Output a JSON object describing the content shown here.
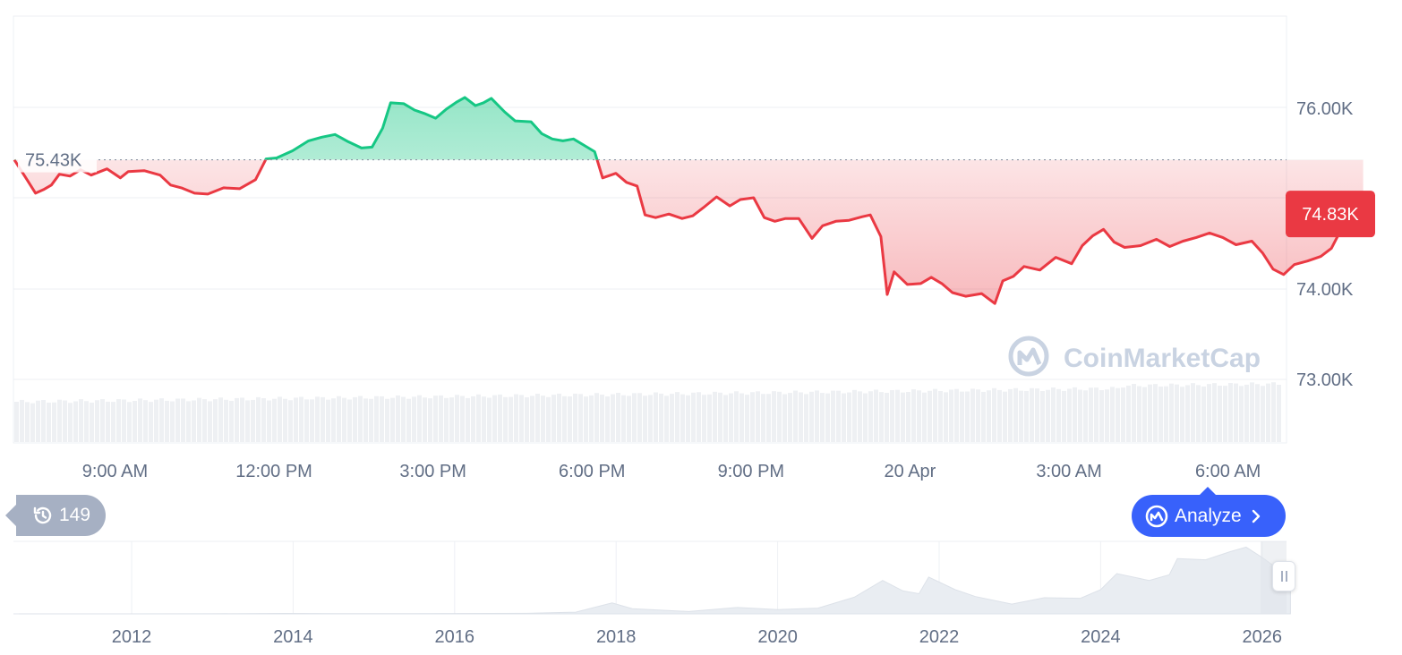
{
  "chart_data": {
    "type": "line",
    "baseline": 75430,
    "baseline_label": "75.43K",
    "current_value": 74830,
    "current_label": "74.83K",
    "y_ticks": [
      {
        "value": 76000,
        "label": "76.00K"
      },
      {
        "value": 74000,
        "label": "74.00K"
      },
      {
        "value": 73000,
        "label": "73.00K"
      }
    ],
    "ylim": [
      72650,
      77000
    ],
    "x_ticks": [
      {
        "hours": 9,
        "label": "9:00 AM"
      },
      {
        "hours": 12,
        "label": "12:00 PM"
      },
      {
        "hours": 15,
        "label": "3:00 PM"
      },
      {
        "hours": 18,
        "label": "6:00 PM"
      },
      {
        "hours": 21,
        "label": "9:00 PM"
      },
      {
        "hours": 24,
        "label": "20 Apr"
      },
      {
        "hours": 27,
        "label": "3:00 AM"
      },
      {
        "hours": 30,
        "label": "6:00 AM"
      }
    ],
    "xlim_hours": [
      7.05,
      31.05
    ],
    "x_note_unit": "hours from Apr 19 00:00",
    "series": [
      {
        "up_color": "#16c784",
        "down_color": "#ea3943",
        "points": [
          [
            7.05,
            75430
          ],
          [
            7.3,
            75200
          ],
          [
            7.45,
            75060
          ],
          [
            7.6,
            75100
          ],
          [
            7.75,
            75150
          ],
          [
            7.9,
            75270
          ],
          [
            8.1,
            75250
          ],
          [
            8.3,
            75320
          ],
          [
            8.5,
            75260
          ],
          [
            8.8,
            75330
          ],
          [
            9.05,
            75230
          ],
          [
            9.2,
            75300
          ],
          [
            9.5,
            75310
          ],
          [
            9.8,
            75260
          ],
          [
            10.0,
            75150
          ],
          [
            10.2,
            75120
          ],
          [
            10.45,
            75060
          ],
          [
            10.7,
            75050
          ],
          [
            11.0,
            75120
          ],
          [
            11.3,
            75110
          ],
          [
            11.6,
            75210
          ],
          [
            11.8,
            75440
          ],
          [
            12.0,
            75450
          ],
          [
            12.3,
            75530
          ],
          [
            12.6,
            75640
          ],
          [
            12.85,
            75680
          ],
          [
            13.1,
            75710
          ],
          [
            13.35,
            75630
          ],
          [
            13.6,
            75560
          ],
          [
            13.8,
            75570
          ],
          [
            14.0,
            75780
          ],
          [
            14.15,
            76060
          ],
          [
            14.4,
            76050
          ],
          [
            14.6,
            75980
          ],
          [
            14.8,
            75940
          ],
          [
            15.0,
            75890
          ],
          [
            15.2,
            75990
          ],
          [
            15.4,
            76070
          ],
          [
            15.55,
            76120
          ],
          [
            15.75,
            76030
          ],
          [
            15.9,
            76060
          ],
          [
            16.05,
            76110
          ],
          [
            16.3,
            75960
          ],
          [
            16.5,
            75860
          ],
          [
            16.8,
            75850
          ],
          [
            17.0,
            75720
          ],
          [
            17.2,
            75660
          ],
          [
            17.4,
            75640
          ],
          [
            17.6,
            75660
          ],
          [
            17.8,
            75590
          ],
          [
            18.0,
            75520
          ],
          [
            18.15,
            75230
          ],
          [
            18.4,
            75280
          ],
          [
            18.6,
            75180
          ],
          [
            18.8,
            75140
          ],
          [
            18.95,
            74820
          ],
          [
            19.15,
            74790
          ],
          [
            19.4,
            74830
          ],
          [
            19.65,
            74780
          ],
          [
            19.85,
            74810
          ],
          [
            20.05,
            74900
          ],
          [
            20.3,
            75020
          ],
          [
            20.55,
            74920
          ],
          [
            20.75,
            74990
          ],
          [
            21.0,
            75010
          ],
          [
            21.2,
            74790
          ],
          [
            21.4,
            74750
          ],
          [
            21.6,
            74780
          ],
          [
            21.85,
            74780
          ],
          [
            22.1,
            74560
          ],
          [
            22.3,
            74700
          ],
          [
            22.55,
            74750
          ],
          [
            22.8,
            74760
          ],
          [
            23.05,
            74800
          ],
          [
            23.2,
            74820
          ],
          [
            23.4,
            74580
          ],
          [
            23.52,
            73940
          ],
          [
            23.65,
            74190
          ],
          [
            23.9,
            74050
          ],
          [
            24.15,
            74060
          ],
          [
            24.35,
            74130
          ],
          [
            24.55,
            74060
          ],
          [
            24.75,
            73960
          ],
          [
            25.0,
            73920
          ],
          [
            25.3,
            73950
          ],
          [
            25.55,
            73840
          ],
          [
            25.7,
            74090
          ],
          [
            25.9,
            74140
          ],
          [
            26.1,
            74250
          ],
          [
            26.4,
            74210
          ],
          [
            26.7,
            74350
          ],
          [
            27.0,
            74280
          ],
          [
            27.2,
            74480
          ],
          [
            27.4,
            74590
          ],
          [
            27.6,
            74660
          ],
          [
            27.8,
            74520
          ],
          [
            28.0,
            74460
          ],
          [
            28.3,
            74480
          ],
          [
            28.6,
            74550
          ],
          [
            28.85,
            74470
          ],
          [
            29.1,
            74530
          ],
          [
            29.35,
            74570
          ],
          [
            29.6,
            74620
          ],
          [
            29.85,
            74570
          ],
          [
            30.1,
            74490
          ],
          [
            30.4,
            74530
          ],
          [
            30.6,
            74400
          ],
          [
            30.8,
            74220
          ],
          [
            31.0,
            74160
          ],
          [
            31.2,
            74270
          ],
          [
            31.45,
            74310
          ],
          [
            31.7,
            74360
          ],
          [
            31.9,
            74450
          ],
          [
            32.05,
            74620
          ],
          [
            32.15,
            74750
          ],
          [
            32.3,
            74790
          ],
          [
            32.5,
            74830
          ]
        ]
      }
    ],
    "volume_range": [
      0.55,
      0.72
    ],
    "overview": {
      "type": "area",
      "x_ticks": [
        {
          "year": 2012,
          "label": "2012"
        },
        {
          "year": 2014,
          "label": "2014"
        },
        {
          "year": 2016,
          "label": "2016"
        },
        {
          "year": 2018,
          "label": "2018"
        },
        {
          "year": 2020,
          "label": "2020"
        },
        {
          "year": 2022,
          "label": "2022"
        },
        {
          "year": 2024,
          "label": "2024"
        },
        {
          "year": 2026,
          "label": "2026"
        }
      ],
      "xlim": [
        2010.6,
        2026.4
      ],
      "ylim": [
        0,
        126000
      ],
      "points": [
        [
          2010.6,
          0
        ],
        [
          2013.0,
          100
        ],
        [
          2013.9,
          800
        ],
        [
          2014.5,
          500
        ],
        [
          2015.5,
          300
        ],
        [
          2016.9,
          900
        ],
        [
          2017.5,
          3000
        ],
        [
          2017.95,
          19000
        ],
        [
          2018.2,
          9000
        ],
        [
          2018.9,
          4000
        ],
        [
          2019.5,
          11000
        ],
        [
          2020.0,
          7500
        ],
        [
          2020.5,
          10000
        ],
        [
          2020.95,
          29000
        ],
        [
          2021.3,
          58000
        ],
        [
          2021.55,
          40000
        ],
        [
          2021.75,
          35000
        ],
        [
          2021.87,
          64000
        ],
        [
          2022.2,
          42000
        ],
        [
          2022.45,
          30000
        ],
        [
          2022.9,
          17000
        ],
        [
          2023.3,
          28000
        ],
        [
          2023.75,
          27000
        ],
        [
          2024.0,
          42000
        ],
        [
          2024.2,
          70000
        ],
        [
          2024.6,
          58000
        ],
        [
          2024.85,
          68000
        ],
        [
          2024.95,
          96000
        ],
        [
          2025.3,
          94000
        ],
        [
          2025.6,
          108000
        ],
        [
          2025.8,
          116000
        ],
        [
          2026.0,
          98000
        ],
        [
          2026.2,
          78000
        ],
        [
          2026.35,
          75000
        ]
      ]
    }
  },
  "watermark": "CoinMarketCap",
  "controls": {
    "history_count": "149",
    "analyze_label": "Analyze"
  },
  "colors": {
    "up": "#16c784",
    "down": "#ea3943",
    "accent": "#3861fb",
    "badge_gray": "#a6b0c3",
    "text": "#616e85"
  },
  "icons": {
    "history": "history-clock-icon",
    "analyze": "cmc-logo-icon",
    "chevron": "chevron-right-icon",
    "pause": "pause-icon"
  }
}
